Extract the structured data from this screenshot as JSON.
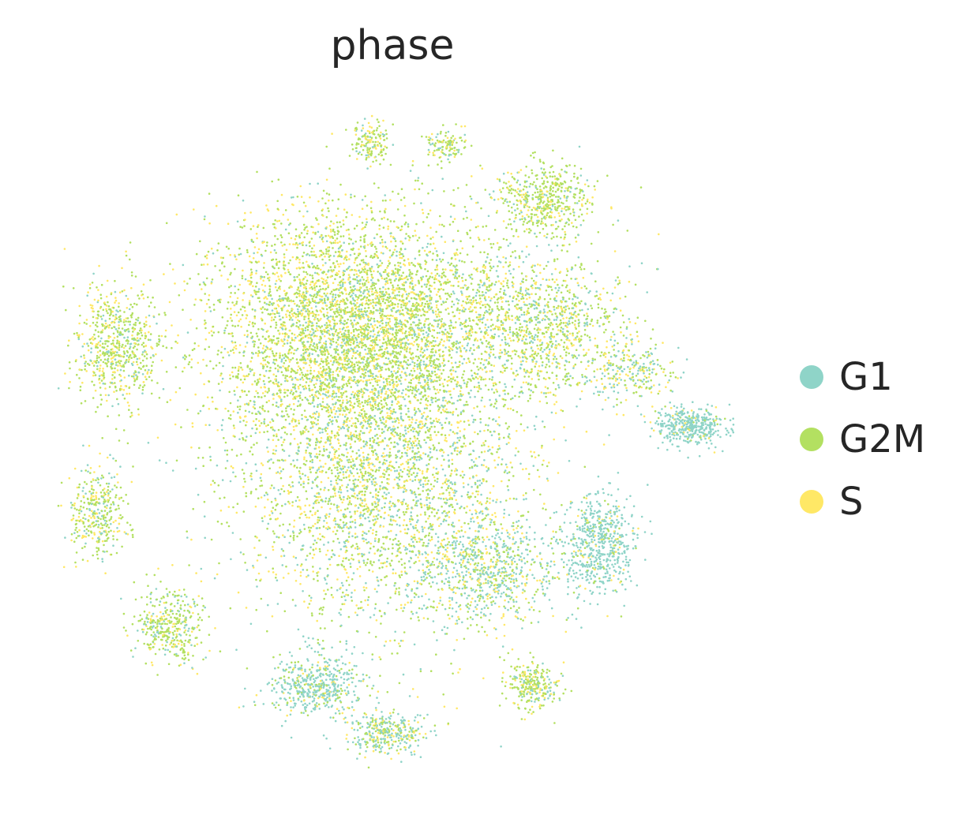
{
  "chart_data": {
    "type": "scatter",
    "title": "phase",
    "xlabel": "",
    "ylabel": "",
    "axes_visible": false,
    "grid": false,
    "legend_placement": "right",
    "series": [
      {
        "name": "G1",
        "color": "#8fd4c8"
      },
      {
        "name": "G2M",
        "color": "#b3e061"
      },
      {
        "name": "S",
        "color": "#ffe866"
      }
    ]
  }
}
